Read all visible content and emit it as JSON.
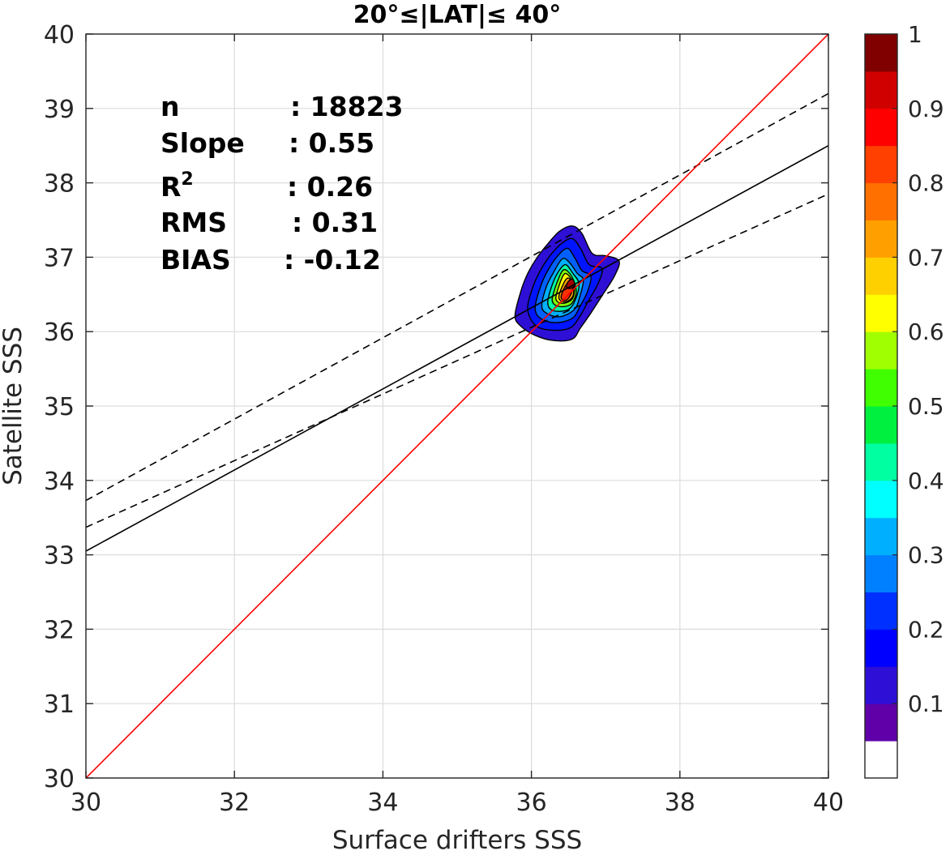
{
  "chart_data": {
    "type": "contour",
    "title": "20°≤|LAT|≤ 40°",
    "xlabel": "Surface drifters SSS",
    "ylabel": "Satellite SSS",
    "xlim": [
      30,
      40
    ],
    "ylim": [
      30,
      40
    ],
    "x_ticks": [
      "30",
      "32",
      "34",
      "36",
      "38",
      "40"
    ],
    "y_ticks": [
      "30",
      "31",
      "32",
      "33",
      "34",
      "35",
      "36",
      "37",
      "38",
      "39",
      "40"
    ],
    "grid": true,
    "stats": [
      {
        "label": "n",
        "value": ": 18823"
      },
      {
        "label": "Slope",
        "value": ": 0.55"
      },
      {
        "label": "R",
        "sup": "2",
        "value": ": 0.26"
      },
      {
        "label": "RMS",
        "value": ": 0.31"
      },
      {
        "label": "BIAS",
        "value": ": -0.12"
      }
    ],
    "lines": {
      "one_to_one": {
        "from": [
          30,
          30
        ],
        "to": [
          40,
          40
        ],
        "color": "#ff0000"
      },
      "fit": {
        "from": [
          30,
          33.05
        ],
        "to": [
          40,
          38.5
        ],
        "color": "#000000"
      },
      "fit_upper": {
        "from": [
          30,
          33.73
        ],
        "to": [
          40,
          39.2
        ],
        "color": "#000000",
        "dash": true
      },
      "fit_lower": {
        "from": [
          30,
          33.37
        ],
        "to": [
          40,
          37.85
        ],
        "color": "#000000",
        "dash": true
      }
    },
    "density_center": [
      36.52,
      36.65
    ],
    "density_levels": [
      {
        "level": 0.05,
        "color": "#2e0fd6",
        "outline": [
          [
            35.78,
            36.22
          ],
          [
            35.86,
            36.55
          ],
          [
            35.95,
            36.78
          ],
          [
            36.08,
            37.0
          ],
          [
            36.22,
            37.18
          ],
          [
            36.38,
            37.35
          ],
          [
            36.55,
            37.42
          ],
          [
            36.68,
            37.32
          ],
          [
            36.82,
            37.05
          ],
          [
            37.0,
            37.02
          ],
          [
            37.18,
            36.95
          ],
          [
            37.12,
            36.75
          ],
          [
            36.95,
            36.48
          ],
          [
            36.8,
            36.25
          ],
          [
            36.66,
            36.05
          ],
          [
            36.55,
            35.9
          ],
          [
            36.3,
            35.88
          ],
          [
            36.05,
            35.95
          ],
          [
            35.85,
            36.08
          ]
        ]
      },
      {
        "level": 0.15,
        "color": "#0015ff",
        "outline": [
          [
            35.95,
            36.3
          ],
          [
            36.02,
            36.6
          ],
          [
            36.12,
            36.82
          ],
          [
            36.25,
            37.02
          ],
          [
            36.4,
            37.18
          ],
          [
            36.55,
            37.25
          ],
          [
            36.66,
            37.12
          ],
          [
            36.78,
            36.9
          ],
          [
            36.95,
            36.85
          ],
          [
            36.9,
            36.65
          ],
          [
            36.76,
            36.4
          ],
          [
            36.65,
            36.2
          ],
          [
            36.52,
            36.05
          ],
          [
            36.28,
            36.02
          ],
          [
            36.06,
            36.08
          ]
        ]
      },
      {
        "level": 0.25,
        "color": "#0060ff",
        "outline": [
          [
            36.05,
            36.32
          ],
          [
            36.12,
            36.6
          ],
          [
            36.22,
            36.82
          ],
          [
            36.34,
            37.0
          ],
          [
            36.48,
            37.12
          ],
          [
            36.58,
            37.0
          ],
          [
            36.68,
            36.82
          ],
          [
            36.8,
            36.75
          ],
          [
            36.76,
            36.55
          ],
          [
            36.66,
            36.35
          ],
          [
            36.55,
            36.18
          ],
          [
            36.32,
            36.12
          ],
          [
            36.12,
            36.18
          ]
        ]
      },
      {
        "level": 0.35,
        "color": "#00b0ff",
        "outline": [
          [
            36.14,
            36.35
          ],
          [
            36.2,
            36.6
          ],
          [
            36.3,
            36.8
          ],
          [
            36.42,
            36.98
          ],
          [
            36.52,
            36.92
          ],
          [
            36.62,
            36.78
          ],
          [
            36.7,
            36.7
          ],
          [
            36.66,
            36.5
          ],
          [
            36.58,
            36.3
          ],
          [
            36.38,
            36.2
          ],
          [
            36.2,
            36.25
          ]
        ]
      },
      {
        "level": 0.45,
        "color": "#00ffa0",
        "outline": [
          [
            36.22,
            36.38
          ],
          [
            36.27,
            36.6
          ],
          [
            36.36,
            36.8
          ],
          [
            36.46,
            36.9
          ],
          [
            36.56,
            36.78
          ],
          [
            36.64,
            36.65
          ],
          [
            36.6,
            36.45
          ],
          [
            36.5,
            36.3
          ],
          [
            36.3,
            36.28
          ]
        ]
      },
      {
        "level": 0.55,
        "color": "#7fff00",
        "outline": [
          [
            36.28,
            36.42
          ],
          [
            36.33,
            36.62
          ],
          [
            36.42,
            36.82
          ],
          [
            36.5,
            36.8
          ],
          [
            36.58,
            36.66
          ],
          [
            36.6,
            36.5
          ],
          [
            36.52,
            36.36
          ],
          [
            36.36,
            36.34
          ]
        ]
      },
      {
        "level": 0.65,
        "color": "#ffff00",
        "outline": [
          [
            36.33,
            36.44
          ],
          [
            36.38,
            36.64
          ],
          [
            36.45,
            36.78
          ],
          [
            36.53,
            36.72
          ],
          [
            36.58,
            36.6
          ],
          [
            36.55,
            36.44
          ],
          [
            36.42,
            36.38
          ]
        ]
      },
      {
        "level": 0.75,
        "color": "#ffa000",
        "outline": [
          [
            36.37,
            36.45
          ],
          [
            36.42,
            36.62
          ],
          [
            36.49,
            36.72
          ],
          [
            36.56,
            36.64
          ],
          [
            36.56,
            36.48
          ],
          [
            36.46,
            36.4
          ]
        ]
      },
      {
        "level": 0.85,
        "color": "#ff3000",
        "outline": [
          [
            36.4,
            36.46
          ],
          [
            36.45,
            36.6
          ],
          [
            36.52,
            36.68
          ],
          [
            36.56,
            36.6
          ],
          [
            36.52,
            36.48
          ],
          [
            36.46,
            36.42
          ]
        ]
      },
      {
        "level": 0.95,
        "color": "#a80000",
        "outline": [
          [
            36.47,
            36.6
          ],
          [
            36.5,
            36.68
          ],
          [
            36.56,
            36.7
          ],
          [
            36.58,
            36.62
          ],
          [
            36.52,
            36.58
          ]
        ]
      }
    ],
    "colorbar": {
      "ticks": [
        "0.1",
        "0.2",
        "0.3",
        "0.4",
        "0.5",
        "0.6",
        "0.7",
        "0.8",
        "0.9",
        "1"
      ],
      "colors": [
        "#ffffff",
        "#5f00a8",
        "#2e0fd6",
        "#0000ff",
        "#0030ff",
        "#0080ff",
        "#00b0ff",
        "#00ffff",
        "#00ffa0",
        "#00f040",
        "#40ff00",
        "#a0ff00",
        "#ffff00",
        "#ffd000",
        "#ffa000",
        "#ff7000",
        "#ff4000",
        "#ff0000",
        "#d00000",
        "#800000"
      ]
    }
  }
}
